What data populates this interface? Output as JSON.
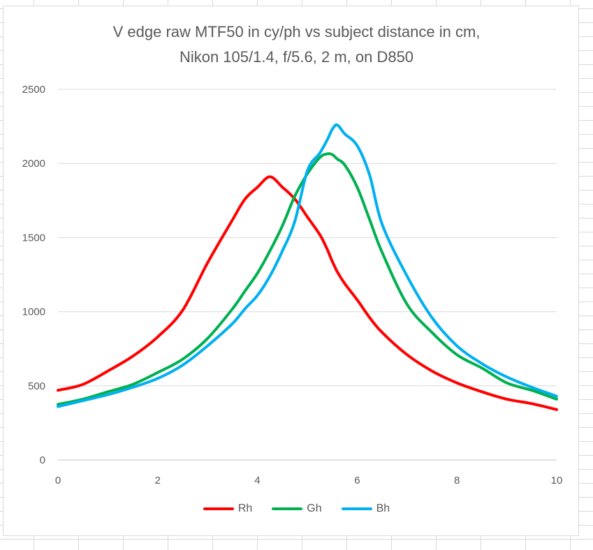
{
  "chart_data": {
    "type": "line",
    "title_lines": [
      "V edge raw MTF50 in cy/ph vs subject distance in cm,",
      "Nikon 105/1.4, f/5.6, 2 m, on D850"
    ],
    "xlabel": "",
    "ylabel": "",
    "xlim": [
      0,
      10
    ],
    "ylim": [
      0,
      2500
    ],
    "x_ticks": [
      0,
      2,
      4,
      6,
      8,
      10
    ],
    "y_ticks": [
      0,
      500,
      1000,
      1500,
      2000,
      2500
    ],
    "grid": "horizontal",
    "legend_position": "bottom",
    "x": [
      0,
      0.5,
      1,
      1.5,
      2,
      2.5,
      3,
      3.5,
      3.75,
      4,
      4.25,
      4.5,
      4.75,
      5,
      5.25,
      5.4,
      5.5,
      5.6,
      5.75,
      6,
      6.25,
      6.5,
      7,
      7.5,
      8,
      8.5,
      9,
      9.5,
      10
    ],
    "series": [
      {
        "name": "Rh",
        "color": "#ff0000",
        "values": [
          470,
          510,
          600,
          700,
          830,
          1010,
          1330,
          1620,
          1760,
          1840,
          1910,
          1840,
          1760,
          1640,
          1520,
          1420,
          1340,
          1270,
          1190,
          1080,
          960,
          860,
          710,
          600,
          520,
          460,
          410,
          380,
          340
        ]
      },
      {
        "name": "Gh",
        "color": "#00b050",
        "values": [
          375,
          410,
          460,
          510,
          590,
          680,
          820,
          1020,
          1140,
          1260,
          1410,
          1580,
          1780,
          1930,
          2040,
          2065,
          2060,
          2030,
          1990,
          1840,
          1620,
          1400,
          1050,
          860,
          710,
          620,
          520,
          470,
          410
        ]
      },
      {
        "name": "Bh",
        "color": "#00b0f0",
        "values": [
          360,
          400,
          440,
          490,
          550,
          640,
          770,
          920,
          1020,
          1110,
          1240,
          1410,
          1610,
          1950,
          2070,
          2160,
          2230,
          2260,
          2200,
          2120,
          1920,
          1590,
          1240,
          960,
          770,
          650,
          560,
          490,
          430
        ]
      }
    ]
  }
}
